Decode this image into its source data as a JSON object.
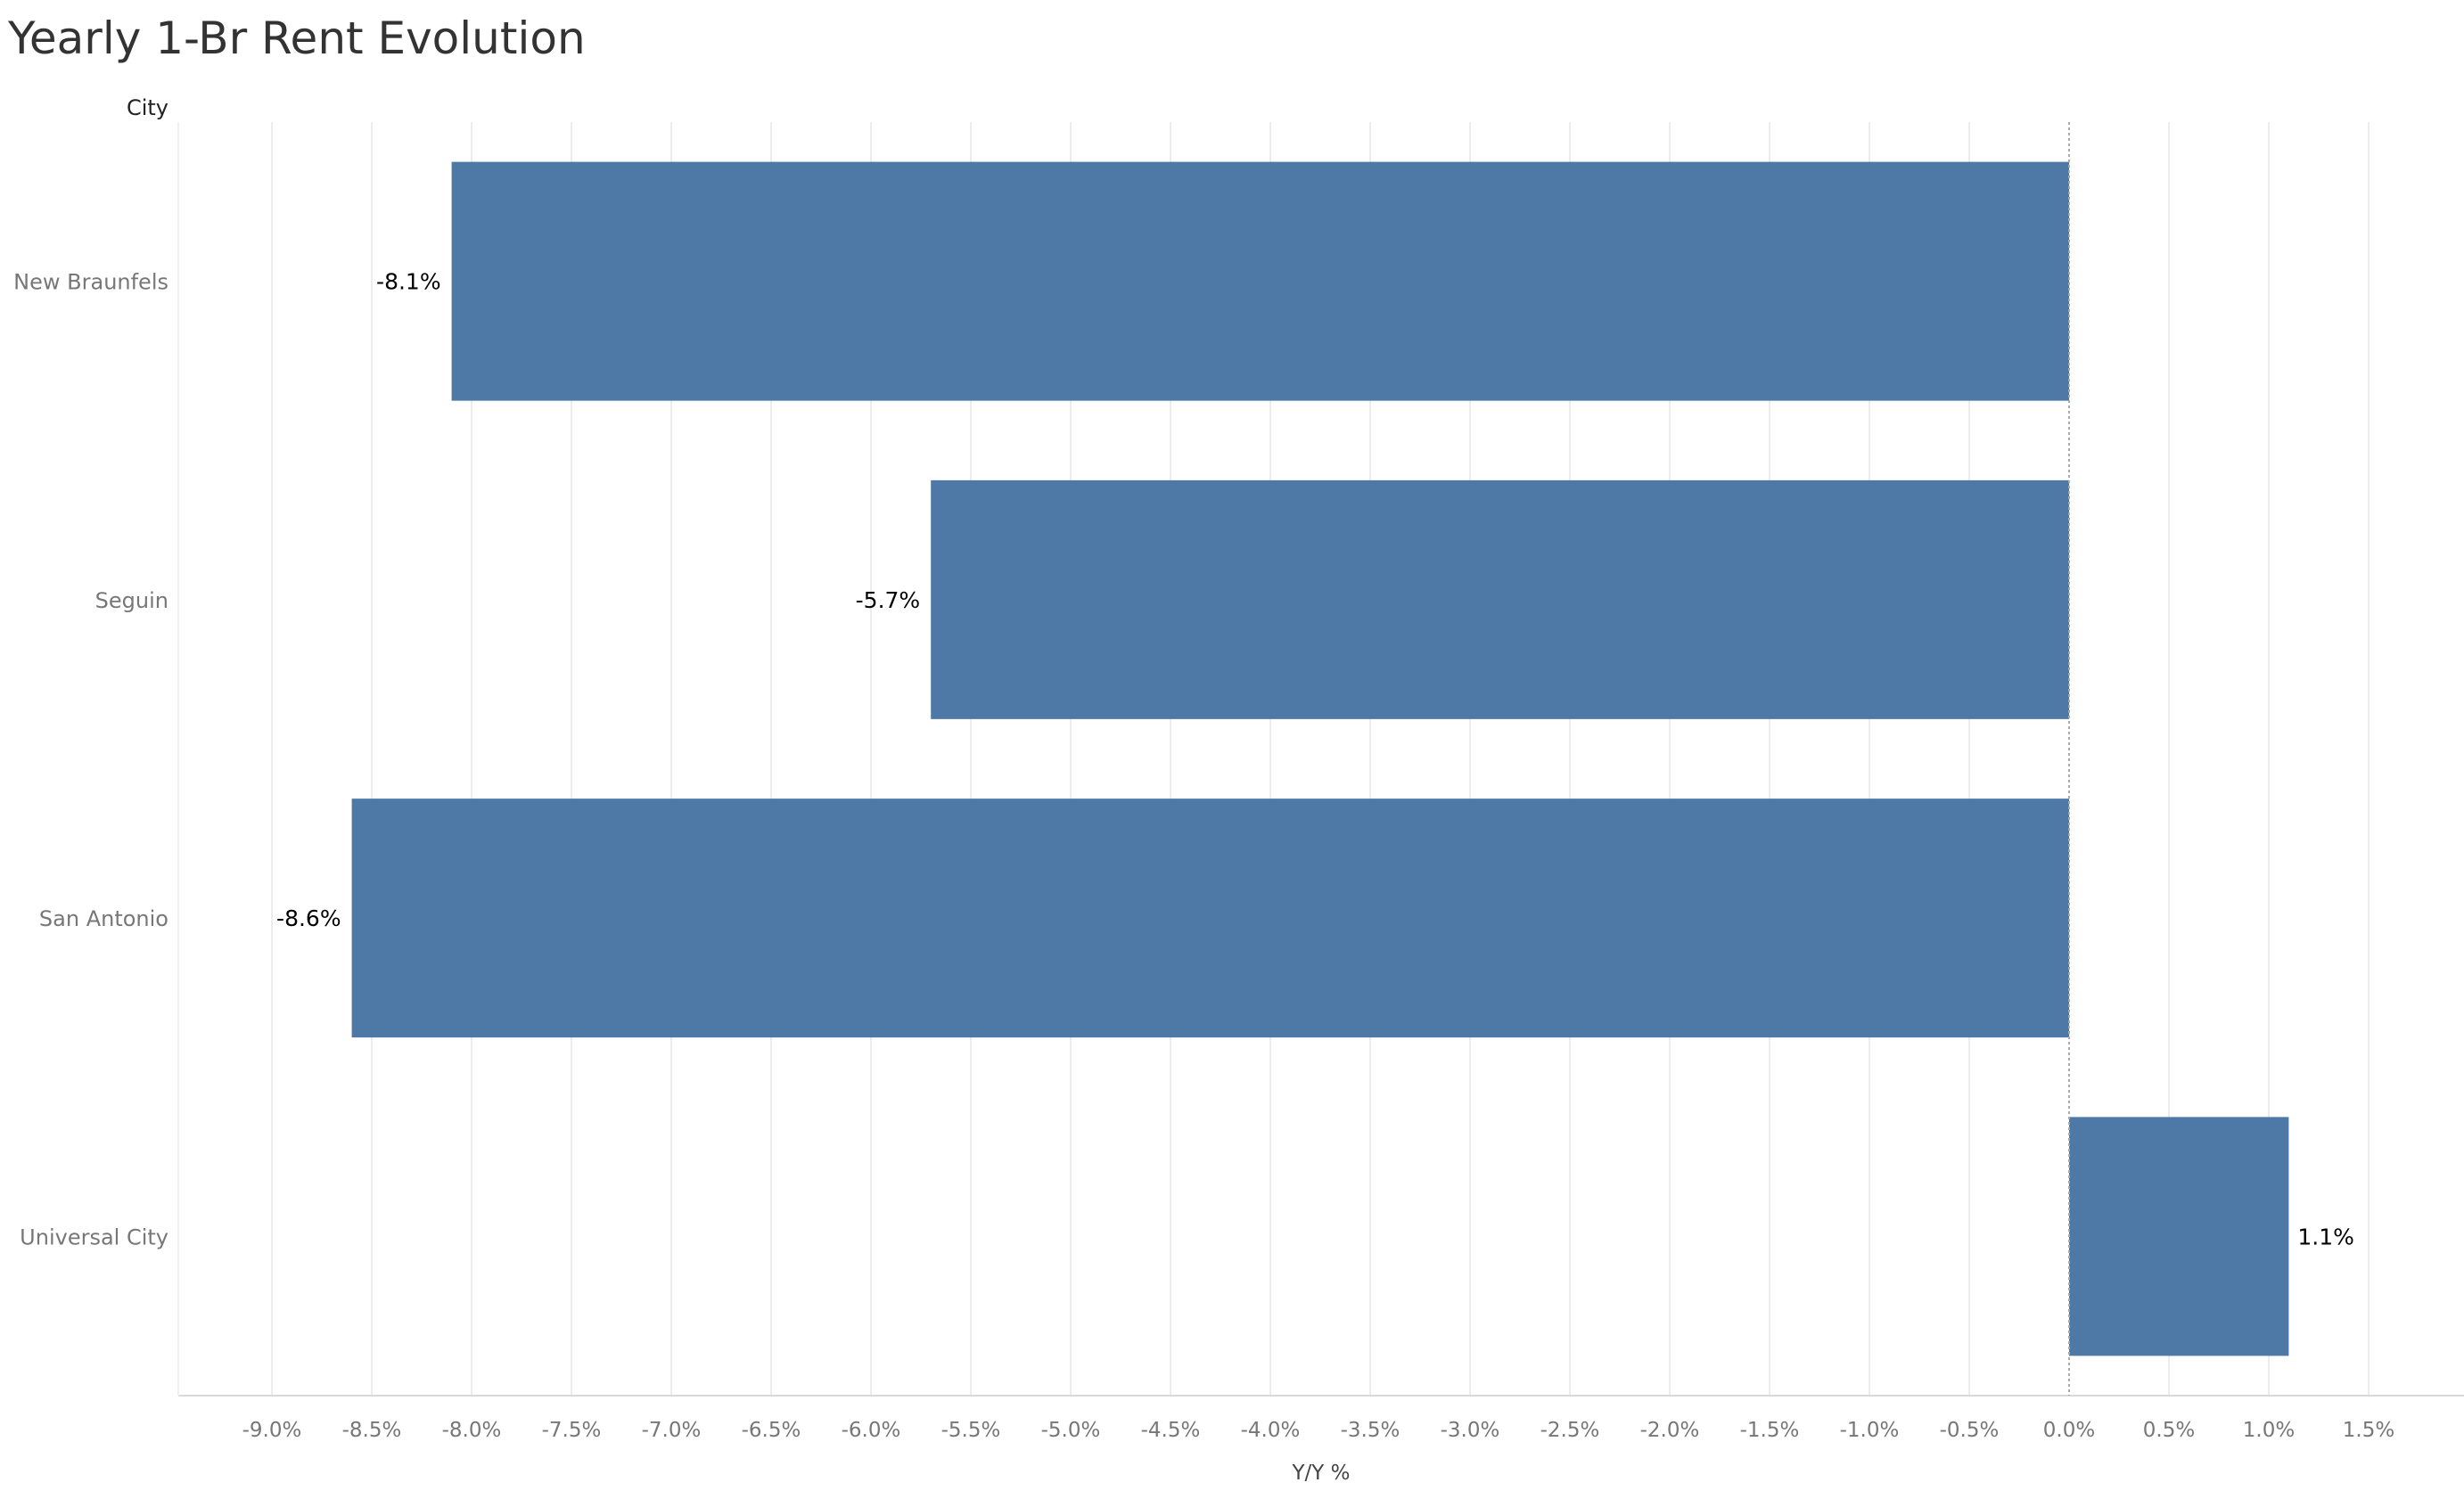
{
  "title": "Yearly 1-Br Rent Evolution",
  "chart_data": {
    "type": "bar",
    "orientation": "horizontal",
    "title": "Yearly 1-Br Rent Evolution",
    "row_header": "City",
    "xlabel": "Y/Y %",
    "ylabel": "City",
    "categories": [
      "New Braunfels",
      "Seguin",
      "San Antonio",
      "Universal City"
    ],
    "values": [
      -8.1,
      -5.7,
      -8.6,
      1.1
    ],
    "data_labels": [
      "-8.1%",
      "-5.7%",
      "-8.6%",
      "1.1%"
    ],
    "xlim": [
      -9.5,
      1.8
    ],
    "xticks": [
      -9.0,
      -8.5,
      -8.0,
      -7.5,
      -7.0,
      -6.5,
      -6.0,
      -5.5,
      -5.0,
      -4.5,
      -4.0,
      -3.5,
      -3.0,
      -2.5,
      -2.0,
      -1.5,
      -1.0,
      -0.5,
      0.0,
      0.5,
      1.0,
      1.5
    ],
    "xtick_labels": [
      "-9.0%",
      "-8.5%",
      "-8.0%",
      "-7.5%",
      "-7.0%",
      "-6.5%",
      "-6.0%",
      "-5.5%",
      "-5.0%",
      "-4.5%",
      "-4.0%",
      "-3.5%",
      "-3.0%",
      "-2.5%",
      "-2.0%",
      "-1.5%",
      "-1.0%",
      "-0.5%",
      "0.0%",
      "0.5%",
      "1.0%",
      "1.5%"
    ],
    "grid": true,
    "legend": "none",
    "colors": {
      "bar": "#4e79a7",
      "grid": "#ececec",
      "axis": "#d9d9d9",
      "zero_line": "#aaaaaa",
      "tick_text": "#777777",
      "label_text": "#000000",
      "title_text": "#333333"
    }
  }
}
